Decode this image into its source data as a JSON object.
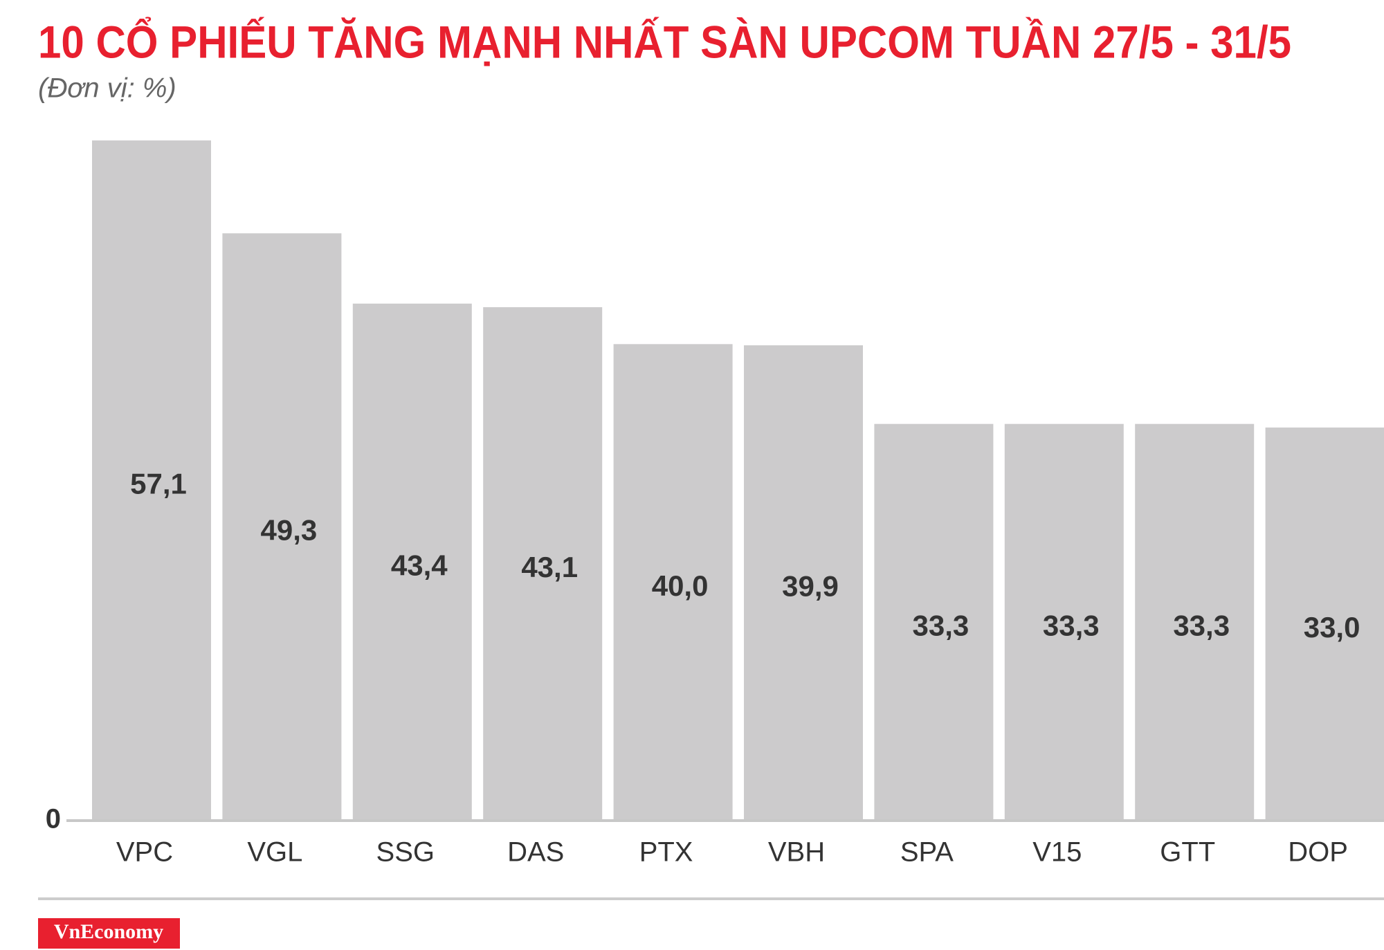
{
  "chart_data": {
    "type": "bar",
    "title": "10 CỔ PHIẾU TĂNG MẠNH NHẤT SÀN UPCOM TUẦN 27/5 - 31/5",
    "subtitle": "(Đơn vị: %)",
    "categories": [
      "VPC",
      "VGL",
      "SSG",
      "DAS",
      "PTX",
      "VBH",
      "SPA",
      "V15",
      "GTT",
      "DOP"
    ],
    "values": [
      57.1,
      49.3,
      43.4,
      43.1,
      40.0,
      39.9,
      33.3,
      33.3,
      33.3,
      33.0
    ],
    "value_labels": [
      "57,1",
      "49,3",
      "43,4",
      "43,1",
      "40,0",
      "39,9",
      "33,3",
      "33,3",
      "33,3",
      "33,0"
    ],
    "color": "#cccbcc",
    "ylim": [
      0,
      60
    ],
    "yticks": [
      0
    ]
  },
  "brand": "VnEconomy"
}
